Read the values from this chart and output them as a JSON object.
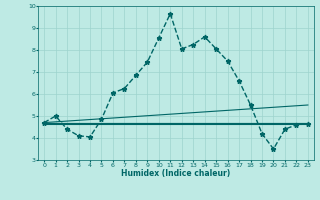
{
  "xlabel": "Humidex (Indice chaleur)",
  "bg_color": "#beeae4",
  "grid_color": "#9dd4ce",
  "line_color": "#006666",
  "xlim": [
    -0.5,
    23.5
  ],
  "ylim": [
    3,
    10
  ],
  "yticks": [
    3,
    4,
    5,
    6,
    7,
    8,
    9,
    10
  ],
  "xticks": [
    0,
    1,
    2,
    3,
    4,
    5,
    6,
    7,
    8,
    9,
    10,
    11,
    12,
    13,
    14,
    15,
    16,
    17,
    18,
    19,
    20,
    21,
    22,
    23
  ],
  "series": [
    {
      "x": [
        0,
        1,
        2,
        3,
        4,
        5,
        6,
        7,
        8,
        9,
        10,
        11,
        12,
        13,
        14,
        15,
        16,
        17,
        18,
        19,
        20,
        21,
        22,
        23
      ],
      "y": [
        4.7,
        5.0,
        4.4,
        4.1,
        4.05,
        4.85,
        6.05,
        6.25,
        6.85,
        7.45,
        8.55,
        9.65,
        8.05,
        8.25,
        8.6,
        8.05,
        7.5,
        6.6,
        5.5,
        4.2,
        3.5,
        4.4,
        4.6,
        4.65
      ],
      "marker": "*",
      "linewidth": 1.0,
      "markersize": 3.5,
      "linestyle": "--"
    },
    {
      "x": [
        0,
        23
      ],
      "y": [
        4.7,
        5.5
      ],
      "marker": null,
      "linewidth": 0.8,
      "markersize": 0,
      "linestyle": "-"
    },
    {
      "x": [
        0,
        23
      ],
      "y": [
        4.65,
        4.65
      ],
      "marker": null,
      "linewidth": 1.5,
      "markersize": 0,
      "linestyle": "-"
    },
    {
      "x": [
        0,
        23
      ],
      "y": [
        4.68,
        4.68
      ],
      "marker": null,
      "linewidth": 0.8,
      "markersize": 0,
      "linestyle": "-"
    }
  ]
}
